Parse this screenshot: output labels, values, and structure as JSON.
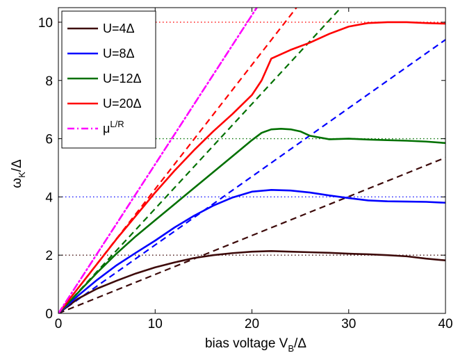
{
  "chart_data": {
    "type": "line",
    "xlabel": "bias voltage V",
    "xlabel_sub": "B",
    "xlabel_tail": "/Δ",
    "ylabel": "ω",
    "ylabel_sub": "K",
    "ylabel_tail": "/Δ",
    "xlim": [
      0,
      40
    ],
    "ylim": [
      0,
      10.5
    ],
    "xticks": [
      0,
      10,
      20,
      30,
      40
    ],
    "yticks": [
      0,
      2,
      4,
      6,
      8,
      10
    ],
    "xtick_labels": [
      "0",
      "10",
      "20",
      "30",
      "40"
    ],
    "ytick_labels": [
      "0",
      "2",
      "4",
      "6",
      "8",
      "10"
    ],
    "grid": false,
    "legend_position": "top-left",
    "reference_levels": [
      {
        "y": 2,
        "color": "#3d0a0a",
        "x_end": 40
      },
      {
        "y": 4,
        "color": "#0000ff",
        "x_end": 40
      },
      {
        "y": 6,
        "color": "#007000",
        "x_end": 40
      },
      {
        "y": 10,
        "color": "#ff0000",
        "x_end": 40
      }
    ],
    "series": [
      {
        "name": "U=4Δ",
        "color": "#3d0a0a",
        "style": "solid",
        "x": [
          0,
          2,
          4,
          6,
          8,
          10,
          12,
          14,
          16,
          18,
          20,
          22,
          24,
          26,
          28,
          30,
          32,
          34,
          36,
          38,
          40
        ],
        "y": [
          0,
          0.5,
          0.85,
          1.12,
          1.37,
          1.58,
          1.75,
          1.9,
          2.0,
          2.07,
          2.12,
          2.14,
          2.12,
          2.1,
          2.08,
          2.05,
          2.03,
          2.0,
          1.96,
          1.88,
          1.82
        ]
      },
      {
        "name": "U=8Δ",
        "color": "#0000ff",
        "style": "solid",
        "x": [
          0,
          2,
          4,
          6,
          8,
          10,
          12,
          14,
          16,
          18,
          20,
          22,
          24,
          26,
          28,
          30,
          32,
          34,
          36,
          38,
          40
        ],
        "y": [
          0,
          0.6,
          1.15,
          1.65,
          2.08,
          2.5,
          2.95,
          3.35,
          3.7,
          3.98,
          4.18,
          4.24,
          4.22,
          4.15,
          4.05,
          3.96,
          3.88,
          3.85,
          3.84,
          3.83,
          3.8
        ]
      },
      {
        "name": "U=12Δ",
        "color": "#007000",
        "style": "solid",
        "x": [
          0,
          2,
          4,
          6,
          8,
          10,
          12,
          14,
          16,
          18,
          20,
          21,
          22,
          23,
          24,
          25,
          26,
          28,
          30,
          32,
          34,
          36,
          38,
          40
        ],
        "y": [
          0,
          0.7,
          1.4,
          2.05,
          2.65,
          3.2,
          3.75,
          4.3,
          4.85,
          5.4,
          5.95,
          6.2,
          6.32,
          6.34,
          6.32,
          6.25,
          6.1,
          5.98,
          6.0,
          5.97,
          5.95,
          5.93,
          5.9,
          5.85
        ]
      },
      {
        "name": "U=20Δ",
        "color": "#ff0000",
        "style": "solid",
        "x": [
          0,
          2,
          4,
          6,
          8,
          10,
          12,
          14,
          16,
          18,
          20,
          21,
          22,
          24,
          26,
          28,
          30,
          32,
          34,
          36,
          38,
          40
        ],
        "y": [
          0,
          0.85,
          1.7,
          2.55,
          3.35,
          4.15,
          4.9,
          5.6,
          6.25,
          6.85,
          7.5,
          8.0,
          8.75,
          9.05,
          9.3,
          9.6,
          9.85,
          9.97,
          10.0,
          10.0,
          9.97,
          9.95
        ]
      },
      {
        "name": "μ",
        "name_sup": "L/R",
        "color": "#ff00ff",
        "style": "dashdot",
        "x": [
          0,
          20.5
        ],
        "y": [
          0,
          10.5
        ]
      }
    ],
    "fit_lines": [
      {
        "color": "#3d0a0a",
        "style": "dashed",
        "x": [
          0,
          40
        ],
        "y": [
          0,
          5.35
        ]
      },
      {
        "color": "#0000ff",
        "style": "dashed",
        "x": [
          0,
          40
        ],
        "y": [
          0,
          9.4
        ]
      },
      {
        "color": "#007000",
        "style": "dashed",
        "x": [
          0,
          29.2
        ],
        "y": [
          0,
          10.5
        ]
      },
      {
        "color": "#ff0000",
        "style": "dashed",
        "x": [
          0,
          24.6
        ],
        "y": [
          0,
          10.5
        ]
      }
    ]
  }
}
